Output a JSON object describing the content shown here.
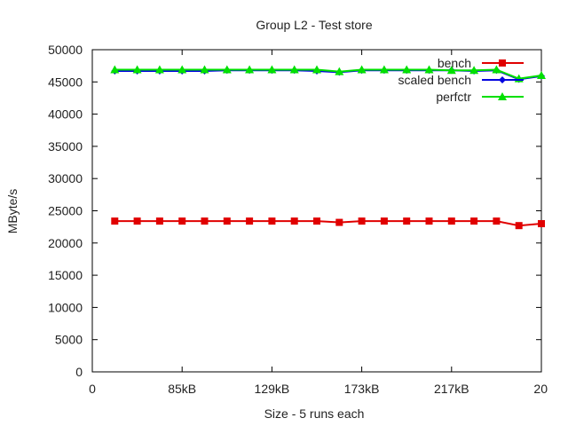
{
  "chart_data": {
    "type": "line",
    "title": "Group L2 - Test store",
    "xlabel": "Size - 5 runs each",
    "ylabel": "MByte/s",
    "xlim": [
      0,
      20
    ],
    "ylim": [
      0,
      50000
    ],
    "x_ticks": [
      "0",
      "85kB",
      "129kB",
      "173kB",
      "217kB",
      "20"
    ],
    "y_ticks": [
      0,
      5000,
      10000,
      15000,
      20000,
      25000,
      30000,
      35000,
      40000,
      45000,
      50000
    ],
    "grid": false,
    "legend_position": "top-right",
    "x": [
      1,
      2,
      3,
      4,
      5,
      6,
      7,
      8,
      9,
      10,
      11,
      12,
      13,
      14,
      15,
      16,
      17,
      18,
      19,
      20
    ],
    "series": [
      {
        "name": "bench",
        "color": "#e00000",
        "marker": "square",
        "values": [
          23400,
          23400,
          23400,
          23400,
          23400,
          23400,
          23400,
          23400,
          23400,
          23400,
          23200,
          23400,
          23400,
          23400,
          23400,
          23400,
          23400,
          23400,
          22700,
          23000
        ]
      },
      {
        "name": "scaled bench",
        "color": "#0000e0",
        "marker": "diamond",
        "values": [
          46700,
          46700,
          46700,
          46700,
          46700,
          46800,
          46800,
          46800,
          46800,
          46700,
          46500,
          46800,
          46800,
          46800,
          46800,
          46800,
          46700,
          46800,
          45400,
          45900
        ]
      },
      {
        "name": "perfctr",
        "color": "#00e000",
        "marker": "triangle",
        "values": [
          46900,
          46900,
          46900,
          46900,
          46900,
          46900,
          46900,
          46900,
          46900,
          46900,
          46600,
          46900,
          46900,
          46900,
          46900,
          46800,
          46800,
          46900,
          45500,
          46000
        ]
      }
    ]
  }
}
